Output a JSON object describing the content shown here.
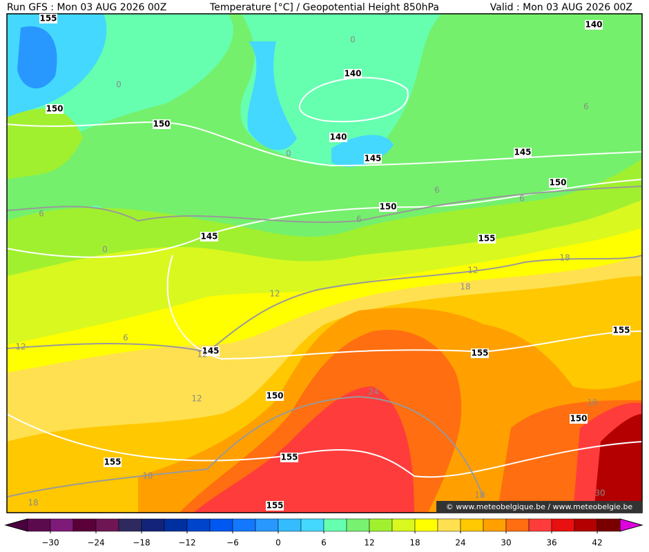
{
  "header": {
    "run": "Run GFS : Mon 03 AUG 2026 00Z",
    "title": "Temperature [°C] / Geopotential Height 850hPa",
    "valid": "Valid : Mon 03 AUG 2026 00Z"
  },
  "watermark": "© www.meteobelgique.be / www.meteobelgie.be",
  "height_labels": [
    "155",
    "140",
    "140",
    "150",
    "150",
    "140",
    "145",
    "145",
    "150",
    "150",
    "145",
    "155",
    "155",
    "145",
    "155",
    "150",
    "150",
    "155",
    "155",
    "155"
  ],
  "temperature_labels": [
    "0",
    "0",
    "6",
    "0",
    "6",
    "6",
    "6",
    "6",
    "0",
    "18",
    "12",
    "12",
    "18",
    "6",
    "12",
    "12",
    "24",
    "12",
    "18",
    "18",
    "18",
    "30",
    "18"
  ],
  "colorbar": {
    "lim": [
      -33,
      45
    ],
    "colors": [
      "#5c0a4e",
      "#7e1a78",
      "#5a0038",
      "#6e1654",
      "#2e2a5e",
      "#13237a",
      "#0030a0",
      "#0044cc",
      "#0058f0",
      "#1478ff",
      "#2898ff",
      "#34bcff",
      "#44d8ff",
      "#66ffb0",
      "#78f070",
      "#a0f030",
      "#d8f820",
      "#ffff00",
      "#ffe050",
      "#ffc800",
      "#ffa000",
      "#ff6e10",
      "#ff3c3c",
      "#e81010",
      "#b40000",
      "#7a0000"
    ],
    "low_color": "#4a0040",
    "high_color": "#e000e0",
    "ticks": [
      {
        "value": -30,
        "label": "−30"
      },
      {
        "value": -24,
        "label": "−24"
      },
      {
        "value": -18,
        "label": "−18"
      },
      {
        "value": -12,
        "label": "−12"
      },
      {
        "value": -6,
        "label": "−6"
      },
      0,
      6,
      12,
      18,
      24,
      30,
      36,
      42
    ]
  }
}
